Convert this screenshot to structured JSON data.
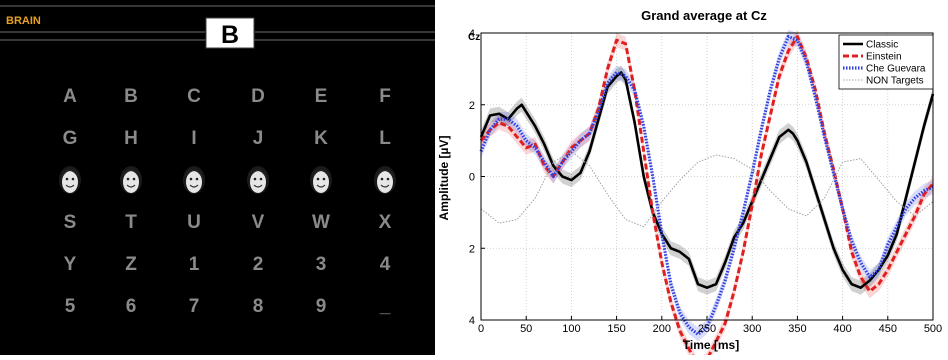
{
  "speller": {
    "word": "BRAIN",
    "current_letter": "B",
    "grid": [
      [
        "A",
        "B",
        "C",
        "D",
        "E",
        "F"
      ],
      [
        "G",
        "H",
        "I",
        "J",
        "K",
        "L"
      ],
      [
        "face",
        "face",
        "face",
        "face",
        "face",
        "face"
      ],
      [
        "S",
        "T",
        "U",
        "V",
        "W",
        "X"
      ],
      [
        "Y",
        "Z",
        "1",
        "2",
        "3",
        "4"
      ],
      [
        "5",
        "6",
        "7",
        "8",
        "9",
        "_"
      ]
    ],
    "colors": {
      "background": "#000000",
      "word": "#e8a020",
      "letters": "#8a8a8a"
    }
  },
  "chart_data": {
    "type": "line",
    "title": "Grand average at Cz",
    "channel_label": "Cz",
    "xlabel": "Time [ms]",
    "ylabel": "Amplitude [µV]",
    "xlim": [
      0,
      500
    ],
    "ylim": [
      -4,
      4
    ],
    "y_axis_inverted": true,
    "xticks": [
      0,
      50,
      100,
      150,
      200,
      250,
      300,
      350,
      400,
      450,
      500
    ],
    "yticks": [
      -4,
      -2,
      0,
      2,
      4
    ],
    "ytick_labels": [
      "4",
      "2",
      "0",
      "2",
      "4"
    ],
    "grid": true,
    "legend_position": "top-right",
    "series": [
      {
        "name": "Classic",
        "color": "#000000",
        "style": "solid",
        "band": true,
        "x": [
          0,
          10,
          20,
          30,
          40,
          45,
          50,
          60,
          70,
          80,
          90,
          100,
          110,
          120,
          130,
          140,
          150,
          155,
          160,
          170,
          180,
          190,
          200,
          210,
          220,
          230,
          240,
          250,
          260,
          270,
          280,
          290,
          300,
          310,
          320,
          330,
          340,
          345,
          350,
          360,
          370,
          380,
          390,
          400,
          410,
          420,
          430,
          440,
          450,
          460,
          470,
          480,
          490,
          500
        ],
        "y": [
          -1.1,
          -1.7,
          -1.75,
          -1.6,
          -1.9,
          -2.0,
          -1.8,
          -1.4,
          -0.9,
          -0.3,
          0.0,
          0.1,
          -0.1,
          -0.7,
          -1.6,
          -2.5,
          -2.8,
          -2.9,
          -2.7,
          -1.5,
          0.0,
          1.0,
          1.6,
          2.0,
          2.1,
          2.3,
          3.0,
          3.1,
          3.0,
          2.4,
          1.7,
          1.3,
          0.7,
          0.1,
          -0.5,
          -1.1,
          -1.3,
          -1.2,
          -1.0,
          -0.4,
          0.4,
          1.2,
          2.0,
          2.6,
          3.0,
          3.1,
          2.9,
          2.6,
          2.2,
          1.6,
          0.6,
          -0.4,
          -1.4,
          -2.3
        ]
      },
      {
        "name": "Einstein",
        "color": "#e02020",
        "style": "dashed",
        "band": true,
        "x": [
          0,
          10,
          20,
          30,
          40,
          50,
          60,
          70,
          80,
          90,
          100,
          110,
          120,
          130,
          140,
          150,
          160,
          170,
          180,
          190,
          200,
          210,
          220,
          230,
          240,
          250,
          260,
          270,
          280,
          290,
          300,
          310,
          320,
          330,
          340,
          350,
          360,
          370,
          380,
          390,
          400,
          410,
          420,
          430,
          440,
          450,
          460,
          470,
          480,
          490,
          500
        ],
        "y": [
          -1.0,
          -1.3,
          -1.5,
          -1.4,
          -1.1,
          -0.8,
          -0.9,
          -0.3,
          0.0,
          -0.4,
          -0.8,
          -1.0,
          -1.2,
          -1.9,
          -3.0,
          -3.8,
          -3.7,
          -2.4,
          -0.7,
          1.0,
          2.4,
          3.5,
          4.3,
          4.8,
          5.3,
          5.1,
          4.6,
          4.1,
          3.2,
          2.1,
          0.8,
          -0.6,
          -1.7,
          -2.8,
          -3.5,
          -3.9,
          -3.3,
          -2.4,
          -1.2,
          -0.2,
          0.9,
          2.1,
          2.8,
          3.2,
          3.0,
          2.6,
          2.1,
          1.6,
          1.1,
          0.5,
          0.2
        ]
      },
      {
        "name": "Che Guevara",
        "color": "#3040e0",
        "style": "dotted",
        "band": true,
        "x": [
          0,
          10,
          20,
          30,
          40,
          50,
          60,
          70,
          80,
          90,
          100,
          110,
          120,
          130,
          140,
          150,
          160,
          170,
          180,
          190,
          200,
          210,
          220,
          230,
          240,
          250,
          260,
          270,
          280,
          290,
          300,
          310,
          320,
          330,
          340,
          350,
          360,
          370,
          380,
          390,
          400,
          410,
          420,
          430,
          440,
          450,
          460,
          470,
          480,
          490,
          500
        ],
        "y": [
          -0.7,
          -1.3,
          -1.6,
          -1.6,
          -1.4,
          -1.0,
          -0.8,
          -0.4,
          0.0,
          -0.4,
          -0.7,
          -1.0,
          -1.2,
          -1.8,
          -2.6,
          -2.9,
          -2.8,
          -2.4,
          -1.4,
          0.0,
          1.6,
          3.0,
          3.8,
          4.2,
          4.4,
          4.2,
          3.6,
          2.9,
          2.0,
          1.0,
          -0.1,
          -1.3,
          -2.4,
          -3.3,
          -3.9,
          -3.8,
          -3.2,
          -2.2,
          -1.1,
          -0.1,
          0.9,
          1.8,
          2.4,
          2.8,
          2.6,
          1.9,
          1.4,
          0.9,
          0.6,
          0.4,
          0.3
        ]
      },
      {
        "name": "NON Targets",
        "color": "#a0a0a0",
        "style": "dotted",
        "band": false,
        "x": [
          0,
          20,
          40,
          60,
          80,
          100,
          120,
          140,
          160,
          180,
          200,
          220,
          240,
          260,
          280,
          300,
          320,
          340,
          360,
          380,
          400,
          420,
          440,
          460,
          480,
          500
        ],
        "y": [
          0.9,
          1.3,
          1.2,
          0.6,
          -0.4,
          -0.7,
          -0.3,
          0.5,
          1.2,
          1.4,
          0.7,
          0.1,
          -0.4,
          -0.6,
          -0.5,
          -0.2,
          0.4,
          0.9,
          1.1,
          0.6,
          -0.4,
          -0.5,
          0.1,
          0.7,
          1.1,
          0.7
        ]
      }
    ]
  }
}
